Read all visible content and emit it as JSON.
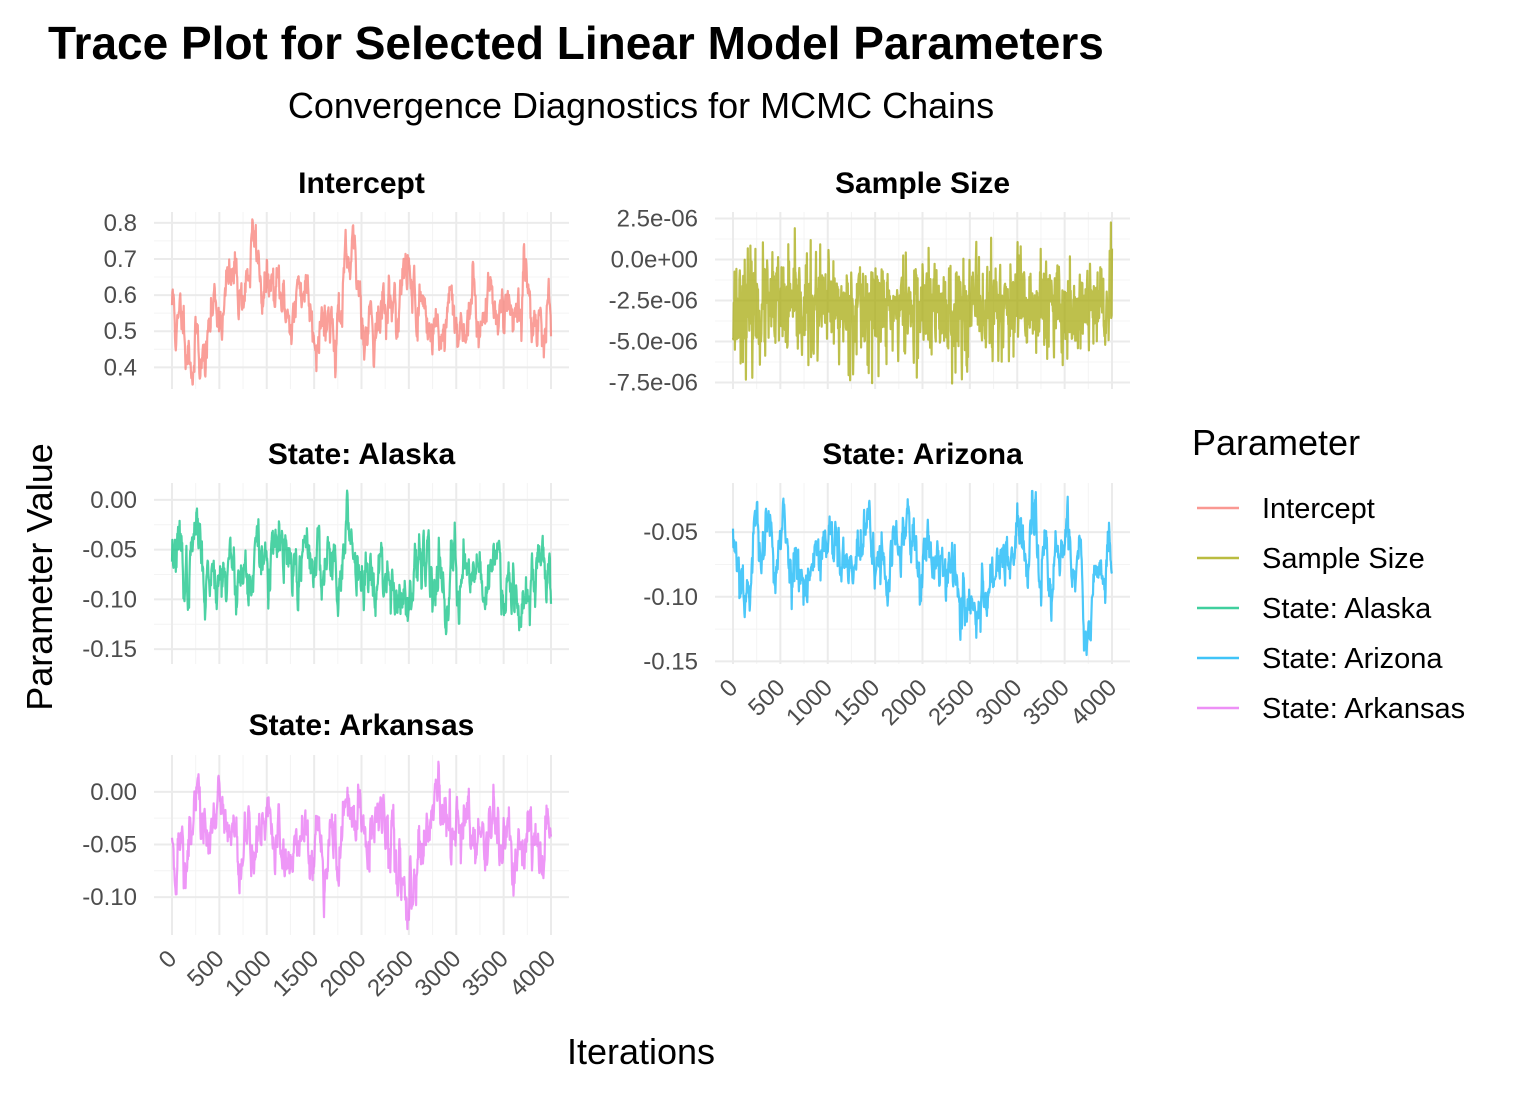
{
  "chart_data": {
    "type": "line",
    "title": "Trace Plot for Selected Linear Model Parameters",
    "subtitle": "Convergence Diagnostics for MCMC Chains",
    "xlabel": "Iterations",
    "ylabel": "Parameter Value",
    "legend": {
      "title": "Parameter",
      "position": "right",
      "items": [
        {
          "label": "Intercept",
          "color": "#F8766D"
        },
        {
          "label": "Sample Size",
          "color": "#A3A500"
        },
        {
          "label": "State: Alaska",
          "color": "#00BF7D"
        },
        {
          "label": "State: Arizona",
          "color": "#00B0F6"
        },
        {
          "label": "State: Arkansas",
          "color": "#E76BF3"
        }
      ]
    },
    "xlim": [
      0,
      4000
    ],
    "xticks": [
      0,
      500,
      1000,
      1500,
      2000,
      2500,
      3000,
      3500,
      4000
    ],
    "xtick_labels": [
      "0",
      "500",
      "1000",
      "1500",
      "2000",
      "2500",
      "3000",
      "3500",
      "4000"
    ],
    "grid": true,
    "facets": [
      {
        "id": "intercept",
        "name": "Intercept",
        "color": "#F8766D",
        "ylim": [
          0.34,
          0.83
        ],
        "yticks": [
          0.4,
          0.5,
          0.6,
          0.7,
          0.8
        ],
        "ytick_labels": [
          "0.4",
          "0.5",
          "0.6",
          "0.7",
          "0.8"
        ],
        "show_x_labels": false,
        "trace": {
          "points": [
            [
              0,
              0.58
            ],
            [
              40,
              0.4
            ],
            [
              80,
              0.52
            ],
            [
              150,
              0.55
            ],
            [
              200,
              0.45
            ],
            [
              270,
              0.5
            ],
            [
              330,
              0.4
            ],
            [
              380,
              0.55
            ],
            [
              450,
              0.6
            ],
            [
              520,
              0.62
            ],
            [
              600,
              0.6
            ],
            [
              680,
              0.63
            ],
            [
              740,
              0.65
            ],
            [
              790,
              0.7
            ],
            [
              830,
              0.8
            ],
            [
              870,
              0.7
            ],
            [
              930,
              0.62
            ],
            [
              1000,
              0.6
            ],
            [
              1080,
              0.55
            ],
            [
              1150,
              0.5
            ],
            [
              1230,
              0.6
            ],
            [
              1300,
              0.55
            ],
            [
              1380,
              0.7
            ],
            [
              1450,
              0.55
            ],
            [
              1520,
              0.6
            ],
            [
              1600,
              0.58
            ],
            [
              1680,
              0.55
            ],
            [
              1750,
              0.6
            ],
            [
              1830,
              0.58
            ],
            [
              1900,
              0.62
            ],
            [
              2000,
              0.55
            ],
            [
              2100,
              0.6
            ],
            [
              2200,
              0.55
            ],
            [
              2300,
              0.58
            ],
            [
              2380,
              0.62
            ],
            [
              2450,
              0.65
            ],
            [
              2550,
              0.62
            ],
            [
              2650,
              0.55
            ],
            [
              2750,
              0.5
            ],
            [
              2850,
              0.52
            ],
            [
              2950,
              0.5
            ],
            [
              3050,
              0.55
            ],
            [
              3150,
              0.58
            ],
            [
              3250,
              0.55
            ],
            [
              3350,
              0.58
            ],
            [
              3450,
              0.62
            ],
            [
              3550,
              0.55
            ],
            [
              3650,
              0.58
            ],
            [
              3740,
              0.62
            ],
            [
              3820,
              0.55
            ],
            [
              3900,
              0.55
            ],
            [
              4000,
              0.52
            ]
          ],
          "range": [
            0.345,
            0.81
          ],
          "volatility": 0.028,
          "reversion": 0.08,
          "seed": 11
        }
      },
      {
        "id": "sample-size",
        "name": "Sample Size",
        "color": "#A3A500",
        "ylim": [
          -7.9e-06,
          2.9e-06
        ],
        "yticks": [
          2.5e-06,
          0,
          -2.5e-06,
          -5e-06,
          -7.5e-06
        ],
        "ytick_labels": [
          "2.5e-06",
          "0.0e+00",
          "-2.5e-06",
          "-5.0e-06",
          "-7.5e-06"
        ],
        "show_x_labels": false,
        "trace": {
          "points": [
            [
              0,
              -3e-06
            ],
            [
              4000,
              -3e-06
            ]
          ],
          "range": [
            -7.6e-06,
            2.4e-06
          ],
          "volatility": 1.6e-06,
          "reversion": 0.9,
          "seed": 23
        }
      },
      {
        "id": "state-alaska",
        "name": "State: Alaska",
        "color": "#00BF7D",
        "ylim": [
          -0.165,
          0.017
        ],
        "yticks": [
          0.0,
          -0.05,
          -0.1,
          -0.15
        ],
        "ytick_labels": [
          "0.00",
          "-0.05",
          "-0.10",
          "-0.15"
        ],
        "show_x_labels": false,
        "trace": {
          "points": [
            [
              0,
              -0.05
            ],
            [
              80,
              -0.07
            ],
            [
              150,
              -0.09
            ],
            [
              200,
              -0.05
            ],
            [
              230,
              -0.02
            ],
            [
              280,
              -0.06
            ],
            [
              350,
              -0.08
            ],
            [
              450,
              -0.05
            ],
            [
              550,
              -0.07
            ],
            [
              650,
              -0.06
            ],
            [
              750,
              -0.08
            ],
            [
              850,
              -0.06
            ],
            [
              950,
              -0.07
            ],
            [
              1050,
              -0.07
            ],
            [
              1150,
              -0.05
            ],
            [
              1250,
              -0.09
            ],
            [
              1350,
              -0.07
            ],
            [
              1450,
              -0.05
            ],
            [
              1550,
              -0.07
            ],
            [
              1650,
              -0.05
            ],
            [
              1750,
              -0.06
            ],
            [
              1850,
              -0.04
            ],
            [
              1950,
              -0.05
            ],
            [
              2050,
              -0.06
            ],
            [
              2150,
              -0.04
            ],
            [
              2250,
              -0.07
            ],
            [
              2350,
              -0.08
            ],
            [
              2450,
              -0.11
            ],
            [
              2520,
              -0.12
            ],
            [
              2600,
              -0.08
            ],
            [
              2700,
              -0.05
            ],
            [
              2800,
              -0.07
            ],
            [
              2900,
              -0.08
            ],
            [
              3000,
              -0.06
            ],
            [
              3100,
              -0.07
            ],
            [
              3200,
              -0.05
            ],
            [
              3300,
              -0.08
            ],
            [
              3400,
              -0.06
            ],
            [
              3500,
              -0.07
            ],
            [
              3600,
              -0.06
            ],
            [
              3680,
              -0.09
            ],
            [
              3750,
              -0.11
            ],
            [
              3850,
              -0.06
            ],
            [
              3950,
              -0.08
            ],
            [
              4000,
              -0.07
            ]
          ],
          "range": [
            -0.158,
            0.012
          ],
          "volatility": 0.011,
          "reversion": 0.12,
          "seed": 37
        }
      },
      {
        "id": "state-arizona",
        "name": "State: Arizona",
        "color": "#00B0F6",
        "ylim": [
          -0.152,
          -0.012
        ],
        "yticks": [
          -0.05,
          -0.1,
          -0.15
        ],
        "ytick_labels": [
          "-0.05",
          "-0.10",
          "-0.15"
        ],
        "show_x_labels": true,
        "trace": {
          "points": [
            [
              0,
              -0.06
            ],
            [
              80,
              -0.07
            ],
            [
              150,
              -0.09
            ],
            [
              220,
              -0.05
            ],
            [
              260,
              -0.03
            ],
            [
              320,
              -0.06
            ],
            [
              400,
              -0.07
            ],
            [
              500,
              -0.06
            ],
            [
              600,
              -0.07
            ],
            [
              700,
              -0.06
            ],
            [
              800,
              -0.08
            ],
            [
              900,
              -0.05
            ],
            [
              1000,
              -0.07
            ],
            [
              1100,
              -0.08
            ],
            [
              1200,
              -0.1
            ],
            [
              1300,
              -0.07
            ],
            [
              1400,
              -0.06
            ],
            [
              1500,
              -0.08
            ],
            [
              1600,
              -0.06
            ],
            [
              1700,
              -0.07
            ],
            [
              1800,
              -0.06
            ],
            [
              1900,
              -0.07
            ],
            [
              2000,
              -0.06
            ],
            [
              2100,
              -0.05
            ],
            [
              2200,
              -0.06
            ],
            [
              2300,
              -0.08
            ],
            [
              2400,
              -0.1
            ],
            [
              2500,
              -0.13
            ],
            [
              2600,
              -0.1
            ],
            [
              2700,
              -0.08
            ],
            [
              2800,
              -0.05
            ],
            [
              2900,
              -0.07
            ],
            [
              3000,
              -0.07
            ],
            [
              3100,
              -0.06
            ],
            [
              3200,
              -0.08
            ],
            [
              3300,
              -0.08
            ],
            [
              3400,
              -0.07
            ],
            [
              3500,
              -0.06
            ],
            [
              3600,
              -0.08
            ],
            [
              3700,
              -0.11
            ],
            [
              3800,
              -0.07
            ],
            [
              3900,
              -0.09
            ],
            [
              4000,
              -0.09
            ]
          ],
          "range": [
            -0.146,
            -0.018
          ],
          "volatility": 0.009,
          "reversion": 0.12,
          "seed": 53
        }
      },
      {
        "id": "state-arkansas",
        "name": "State: Arkansas",
        "color": "#E76BF3",
        "ylim": [
          -0.136,
          0.035
        ],
        "yticks": [
          0.0,
          -0.05,
          -0.1
        ],
        "ytick_labels": [
          "0.00",
          "-0.05",
          "-0.10"
        ],
        "show_x_labels": true,
        "trace": {
          "points": [
            [
              0,
              -0.04
            ],
            [
              80,
              -0.05
            ],
            [
              150,
              -0.07
            ],
            [
              200,
              -0.02
            ],
            [
              250,
              0.0
            ],
            [
              300,
              -0.04
            ],
            [
              400,
              -0.06
            ],
            [
              500,
              -0.03
            ],
            [
              600,
              -0.05
            ],
            [
              700,
              -0.04
            ],
            [
              800,
              -0.05
            ],
            [
              900,
              -0.03
            ],
            [
              1000,
              -0.04
            ],
            [
              1100,
              -0.05
            ],
            [
              1200,
              -0.07
            ],
            [
              1300,
              -0.04
            ],
            [
              1400,
              -0.05
            ],
            [
              1500,
              -0.03
            ],
            [
              1600,
              -0.04
            ],
            [
              1700,
              -0.05
            ],
            [
              1800,
              -0.03
            ],
            [
              1900,
              -0.02
            ],
            [
              2000,
              -0.04
            ],
            [
              2100,
              -0.03
            ],
            [
              2200,
              -0.05
            ],
            [
              2300,
              -0.06
            ],
            [
              2400,
              -0.08
            ],
            [
              2500,
              -0.1
            ],
            [
              2600,
              -0.07
            ],
            [
              2700,
              -0.04
            ],
            [
              2800,
              -0.03
            ],
            [
              2900,
              -0.05
            ],
            [
              3000,
              -0.04
            ],
            [
              3100,
              -0.05
            ],
            [
              3200,
              -0.04
            ],
            [
              3300,
              -0.05
            ],
            [
              3400,
              -0.04
            ],
            [
              3500,
              -0.05
            ],
            [
              3600,
              -0.06
            ],
            [
              3700,
              -0.08
            ],
            [
              3800,
              -0.05
            ],
            [
              3900,
              -0.06
            ],
            [
              4000,
              -0.06
            ]
          ],
          "range": [
            -0.132,
            0.03
          ],
          "volatility": 0.011,
          "reversion": 0.12,
          "seed": 71
        }
      }
    ]
  }
}
